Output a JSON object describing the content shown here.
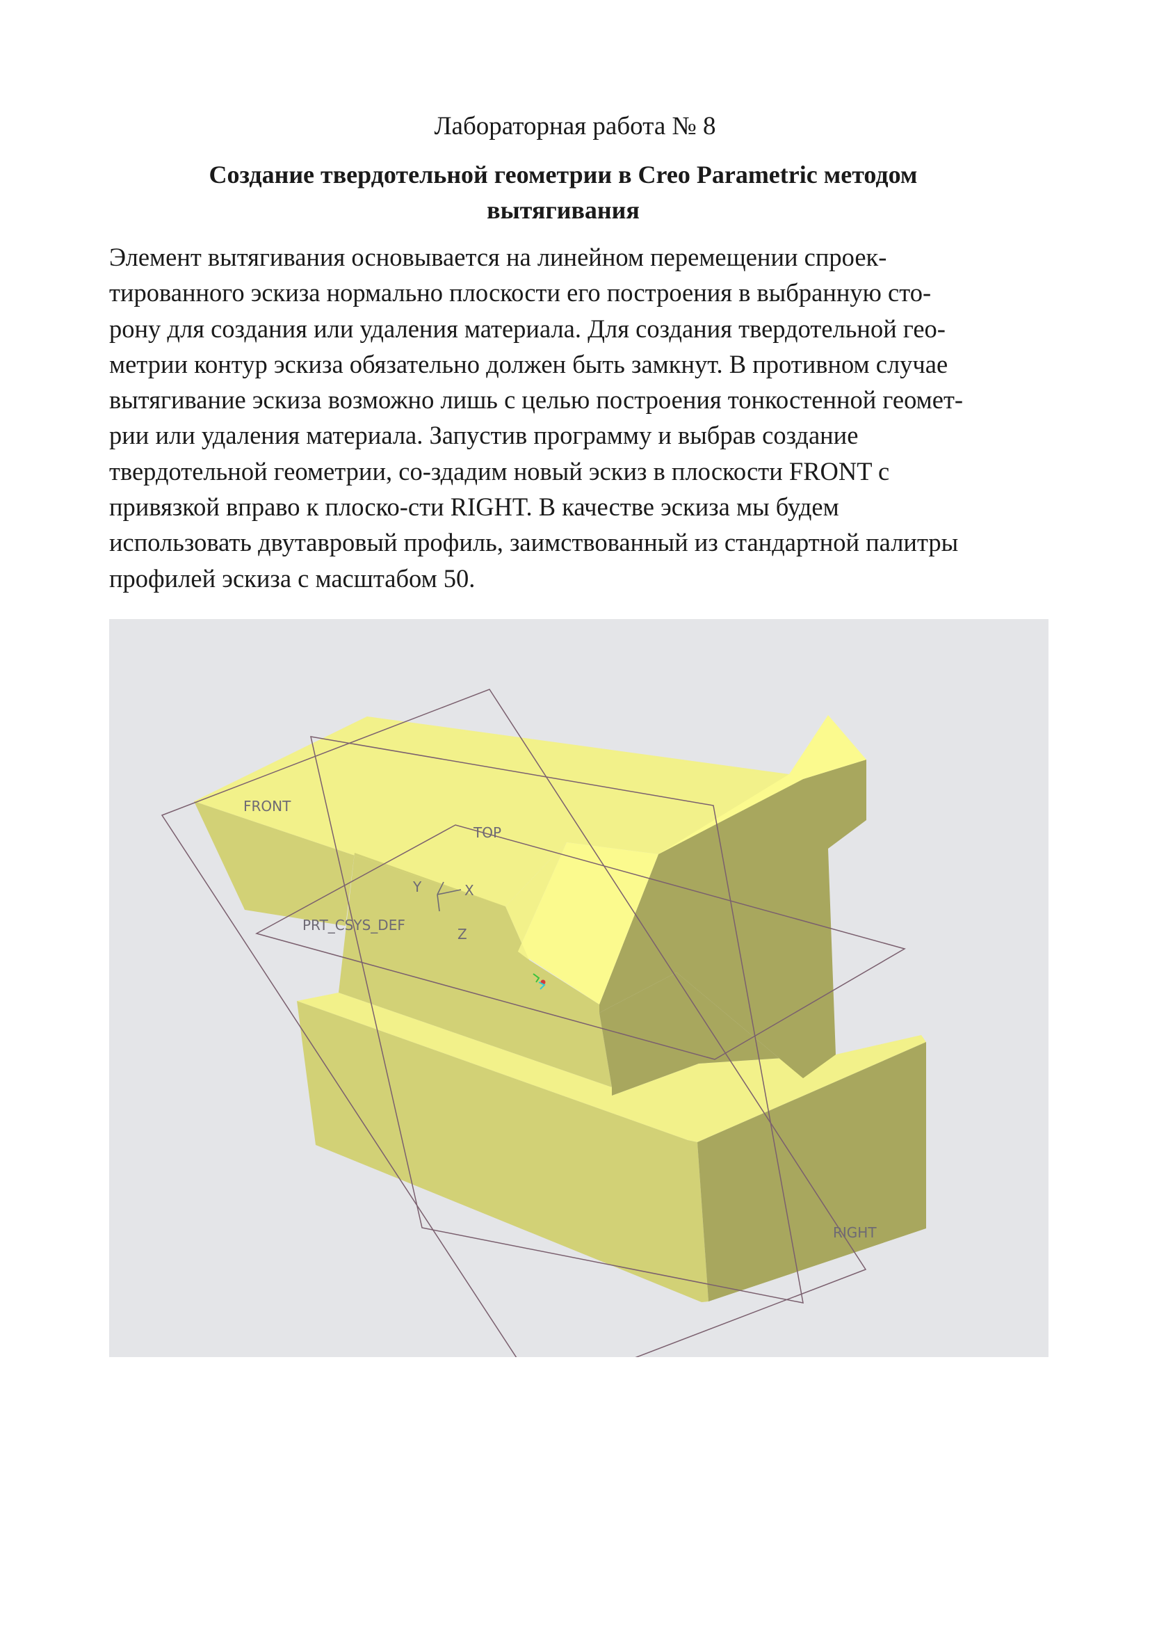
{
  "document": {
    "lab_title": "Лабораторная работа № 8",
    "heading_lines": [
      "Создание твердотельной геометрии в Creo Parametric методом",
      "вытягивания"
    ],
    "paragraph_lines": [
      "Элемент вытягивания основывается на линейном перемещении спроек-",
      "тированного эскиза нормально плоскости его построения в выбранную сто-",
      "рону для создания или удаления материала. Для создания твердотельной гео-",
      "метрии контур эскиза обязательно должен быть замкнут. В противном случае",
      "вытягивание эскиза возможно лишь с целью построения тонкостенной геомет-",
      "рии или удаления материала. Запустив программу и выбрав создание",
      "твердотельной геометрии, со-здадим новый эскиз в плоскости FRONT с",
      "привязкой вправо к плоско-сти RIGHT. В качестве эскиза мы будем",
      "использовать двутавровый профиль, заимствованный из стандартной палитры",
      "профилей эскиза с масштабом 50."
    ]
  },
  "figure": {
    "labels": {
      "front": "FRONT",
      "top": "TOP",
      "right": "RIGHT",
      "csys": "PRT_CSYS_DEF",
      "axis_x": "X",
      "axis_y": "Y",
      "axis_z": "Z"
    },
    "colors": {
      "background": "#e4e5e8",
      "face_front": "#d2d176",
      "face_top": "#f2f18a",
      "face_side": "#a8a75e",
      "face_end": "#fbfa8e",
      "datum_plane": "#7a5f6e"
    }
  }
}
